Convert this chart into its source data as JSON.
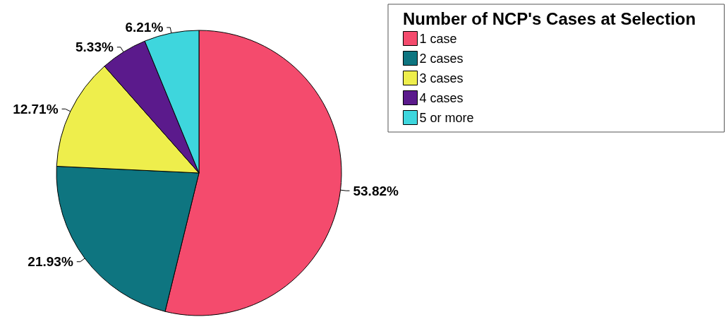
{
  "chart_data": {
    "type": "pie",
    "legend_title": "Number of NCP's Cases at Selection",
    "categories": [
      "1 case",
      "2 cases",
      "3 cases",
      "4 cases",
      "5 or more"
    ],
    "values": [
      53.82,
      21.93,
      12.71,
      5.33,
      6.21
    ],
    "colors": [
      "#f44b6d",
      "#0e7580",
      "#eeee4c",
      "#5b1a8c",
      "#3ed6dd"
    ],
    "value_labels": [
      "53.82%",
      "21.93%",
      "12.71%",
      "5.33%",
      "6.21%"
    ],
    "legend": "top right"
  }
}
